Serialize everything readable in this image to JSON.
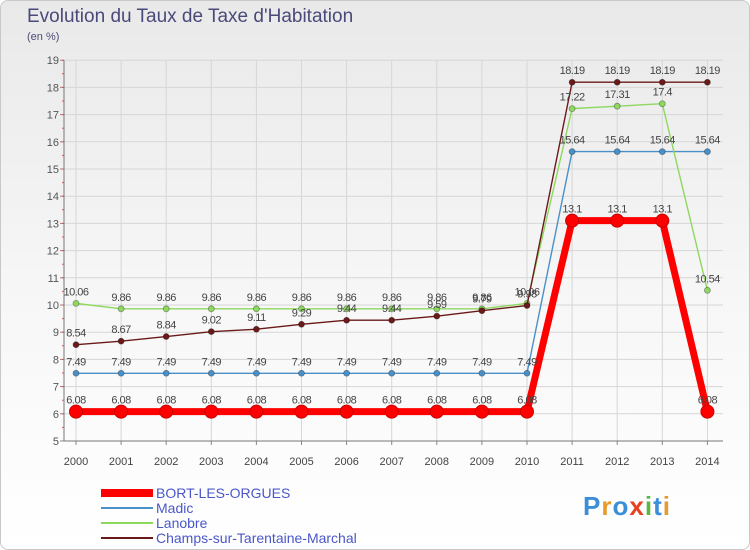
{
  "header": {
    "title": "Evolution du Taux de Taxe d'Habitation",
    "subtitle": "(en %)"
  },
  "logo": {
    "text": "Proxiti"
  },
  "chart_data": {
    "type": "line",
    "title": "Evolution du Taux de Taxe d'Habitation",
    "ylabel": "(en %)",
    "xlabel": "",
    "ylim": [
      5,
      19
    ],
    "yticks": [
      "5",
      "6",
      "7",
      "8",
      "9",
      "10",
      "11",
      "12",
      "13",
      "14",
      "15",
      "16",
      "17",
      "18",
      "19"
    ],
    "grid": true,
    "legend_position": "bottom-left",
    "categories": [
      "2000",
      "2001",
      "2002",
      "2003",
      "2004",
      "2005",
      "2006",
      "2007",
      "2008",
      "2009",
      "2010",
      "2011",
      "2012",
      "2013",
      "2014"
    ],
    "series": [
      {
        "name": "BORT-LES-ORGUES",
        "color": "#ff0000",
        "values": [
          6.08,
          6.08,
          6.08,
          6.08,
          6.08,
          6.08,
          6.08,
          6.08,
          6.08,
          6.08,
          6.08,
          13.1,
          13.1,
          13.1,
          6.08
        ],
        "labels": [
          "6.08",
          "6.08",
          "6.08",
          "6.08",
          "6.08",
          "6.08",
          "6.08",
          "6.08",
          "6.08",
          "6.08",
          "6.08",
          "13.1",
          "13.1",
          "13.1",
          "6.08"
        ]
      },
      {
        "name": "Madic",
        "color": "#4a90c8",
        "values": [
          7.49,
          7.49,
          7.49,
          7.49,
          7.49,
          7.49,
          7.49,
          7.49,
          7.49,
          7.49,
          7.49,
          15.64,
          15.64,
          15.64,
          15.64
        ],
        "labels": [
          "7.49",
          "7.49",
          "7.49",
          "7.49",
          "7.49",
          "7.49",
          "7.49",
          "7.49",
          "7.49",
          "7.49",
          "7.49",
          "15.64",
          "15.64",
          "15.64",
          "15.64"
        ]
      },
      {
        "name": "Lanobre",
        "color": "#8ed860",
        "values": [
          10.06,
          9.86,
          9.86,
          9.86,
          9.86,
          9.86,
          9.86,
          9.86,
          9.86,
          9.86,
          10.06,
          17.22,
          17.31,
          17.4,
          10.54
        ],
        "labels": [
          "10.06",
          "9.86",
          "9.86",
          "9.86",
          "9.86",
          "9.86",
          "9.86",
          "9.86",
          "9.86",
          "9.86",
          "10.06",
          "17.22",
          "17.31",
          "17.4",
          "10.54"
        ]
      },
      {
        "name": "Champs-sur-Tarentaine-Marchal",
        "color": "#6b1a1a",
        "values": [
          8.54,
          8.67,
          8.84,
          9.02,
          9.11,
          9.29,
          9.44,
          9.44,
          9.59,
          9.79,
          9.98,
          18.19,
          18.19,
          18.19,
          18.19
        ],
        "labels": [
          "8.54",
          "8.67",
          "8.84",
          "9.02",
          "9.11",
          "9.29",
          "9.44",
          "9.44",
          "9.59",
          "9.79",
          "9.98",
          "18.19",
          "18.19",
          "18.19",
          "18.19"
        ]
      }
    ]
  }
}
